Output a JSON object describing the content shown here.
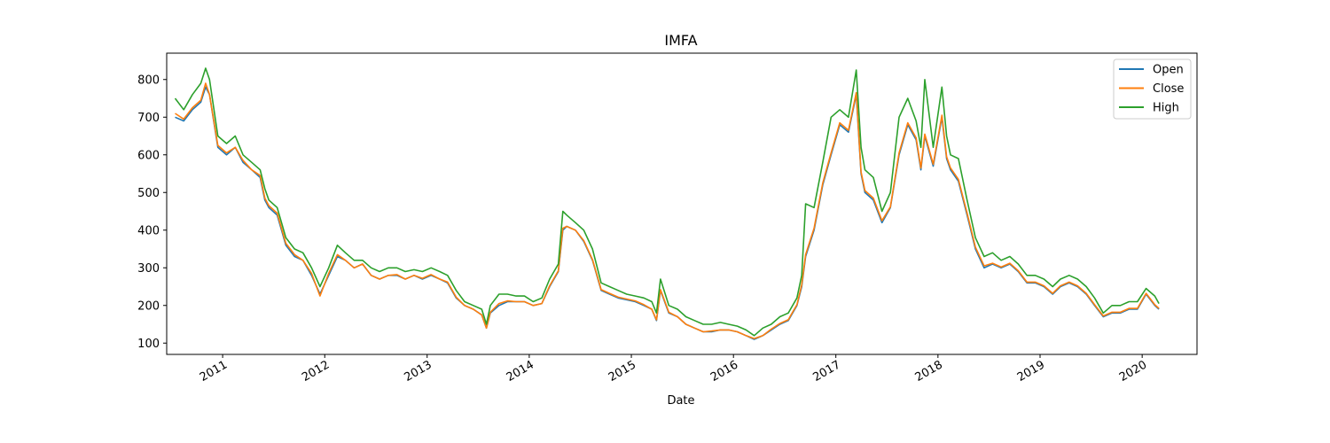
{
  "chart_data": {
    "type": "line",
    "title": "IMFA",
    "xlabel": "Date",
    "ylabel": "",
    "x_range": [
      "2010-06-15",
      "2020-07-15"
    ],
    "ylim": [
      70,
      870
    ],
    "yticks": [
      100,
      200,
      300,
      400,
      500,
      600,
      700,
      800
    ],
    "xticks": [
      "2011",
      "2012",
      "2013",
      "2014",
      "2015",
      "2016",
      "2017",
      "2018",
      "2019",
      "2020"
    ],
    "grid": false,
    "legend_position": "top-right",
    "x": [
      "2010-07-15",
      "2010-08-15",
      "2010-09-15",
      "2010-10-15",
      "2010-11-01",
      "2010-11-15",
      "2010-12-15",
      "2011-01-15",
      "2011-02-15",
      "2011-03-15",
      "2011-04-15",
      "2011-05-15",
      "2011-06-01",
      "2011-06-15",
      "2011-07-15",
      "2011-08-15",
      "2011-09-15",
      "2011-10-15",
      "2011-11-15",
      "2011-12-15",
      "2012-01-15",
      "2012-02-15",
      "2012-03-15",
      "2012-04-15",
      "2012-05-15",
      "2012-06-15",
      "2012-07-15",
      "2012-08-15",
      "2012-09-15",
      "2012-10-15",
      "2012-11-15",
      "2012-12-15",
      "2013-01-15",
      "2013-02-15",
      "2013-03-15",
      "2013-04-15",
      "2013-05-15",
      "2013-06-15",
      "2013-07-15",
      "2013-08-01",
      "2013-08-15",
      "2013-09-15",
      "2013-10-15",
      "2013-11-15",
      "2013-12-15",
      "2014-01-15",
      "2014-02-15",
      "2014-03-15",
      "2014-04-15",
      "2014-05-01",
      "2014-05-15",
      "2014-06-15",
      "2014-07-15",
      "2014-08-15",
      "2014-09-15",
      "2014-10-15",
      "2014-11-15",
      "2014-12-15",
      "2015-01-15",
      "2015-02-15",
      "2015-03-15",
      "2015-04-01",
      "2015-04-15",
      "2015-05-15",
      "2015-06-15",
      "2015-07-15",
      "2015-08-15",
      "2015-09-15",
      "2015-10-15",
      "2015-11-15",
      "2015-12-15",
      "2016-01-15",
      "2016-02-15",
      "2016-03-15",
      "2016-04-15",
      "2016-05-15",
      "2016-06-15",
      "2016-07-15",
      "2016-08-15",
      "2016-09-01",
      "2016-09-15",
      "2016-10-15",
      "2016-11-15",
      "2016-12-15",
      "2017-01-15",
      "2017-02-15",
      "2017-03-15",
      "2017-04-01",
      "2017-04-15",
      "2017-05-15",
      "2017-06-15",
      "2017-07-15",
      "2017-08-15",
      "2017-09-15",
      "2017-10-15",
      "2017-11-01",
      "2017-11-15",
      "2017-12-15",
      "2018-01-15",
      "2018-02-01",
      "2018-02-15",
      "2018-03-15",
      "2018-04-15",
      "2018-05-15",
      "2018-06-15",
      "2018-07-15",
      "2018-08-15",
      "2018-09-15",
      "2018-10-15",
      "2018-11-15",
      "2018-12-15",
      "2019-01-15",
      "2019-02-15",
      "2019-03-15",
      "2019-04-15",
      "2019-05-15",
      "2019-06-15",
      "2019-07-15",
      "2019-08-15",
      "2019-09-15",
      "2019-10-15",
      "2019-11-15",
      "2019-12-15",
      "2020-01-15",
      "2020-02-15",
      "2020-03-01"
    ],
    "series": [
      {
        "name": "Open",
        "color": "#1f77b4",
        "values": [
          700,
          690,
          720,
          740,
          780,
          760,
          620,
          600,
          620,
          580,
          560,
          540,
          480,
          460,
          440,
          360,
          330,
          320,
          280,
          230,
          280,
          330,
          320,
          300,
          310,
          280,
          270,
          280,
          280,
          270,
          280,
          270,
          280,
          270,
          260,
          220,
          200,
          190,
          175,
          140,
          180,
          200,
          210,
          210,
          210,
          200,
          205,
          250,
          290,
          400,
          410,
          400,
          370,
          320,
          240,
          230,
          220,
          215,
          210,
          200,
          190,
          160,
          240,
          180,
          170,
          150,
          140,
          130,
          130,
          135,
          135,
          130,
          120,
          110,
          120,
          135,
          150,
          160,
          200,
          250,
          330,
          400,
          520,
          600,
          680,
          660,
          760,
          550,
          500,
          480,
          420,
          460,
          600,
          680,
          640,
          560,
          650,
          570,
          700,
          590,
          560,
          530,
          440,
          350,
          300,
          310,
          300,
          310,
          290,
          260,
          260,
          250,
          230,
          250,
          260,
          250,
          230,
          200,
          170,
          180,
          180,
          190,
          190,
          230,
          200,
          190
        ]
      },
      {
        "name": "Close",
        "color": "#ff7f0e",
        "values": [
          710,
          695,
          725,
          745,
          790,
          760,
          625,
          605,
          620,
          585,
          560,
          545,
          485,
          465,
          445,
          365,
          335,
          320,
          285,
          225,
          285,
          335,
          320,
          300,
          310,
          280,
          270,
          280,
          282,
          270,
          280,
          272,
          282,
          270,
          262,
          222,
          200,
          190,
          175,
          140,
          182,
          205,
          212,
          210,
          210,
          200,
          205,
          252,
          292,
          405,
          410,
          400,
          372,
          322,
          242,
          232,
          222,
          217,
          212,
          202,
          190,
          162,
          242,
          182,
          170,
          150,
          140,
          130,
          132,
          135,
          135,
          130,
          120,
          112,
          120,
          137,
          152,
          162,
          202,
          255,
          335,
          405,
          525,
          605,
          685,
          665,
          765,
          555,
          505,
          485,
          425,
          462,
          605,
          685,
          645,
          565,
          655,
          575,
          705,
          595,
          565,
          535,
          445,
          355,
          305,
          312,
          302,
          312,
          292,
          262,
          262,
          252,
          232,
          252,
          262,
          252,
          232,
          202,
          172,
          182,
          182,
          192,
          192,
          232,
          202,
          192
        ]
      },
      {
        "name": "High",
        "color": "#2ca02c",
        "values": [
          750,
          720,
          760,
          790,
          830,
          800,
          650,
          630,
          650,
          600,
          580,
          560,
          510,
          480,
          460,
          380,
          350,
          340,
          300,
          250,
          300,
          360,
          340,
          320,
          320,
          300,
          290,
          300,
          300,
          290,
          295,
          290,
          300,
          290,
          280,
          240,
          210,
          200,
          190,
          150,
          200,
          230,
          230,
          225,
          225,
          210,
          220,
          270,
          310,
          450,
          440,
          420,
          400,
          350,
          260,
          250,
          240,
          230,
          225,
          220,
          210,
          180,
          270,
          200,
          190,
          170,
          160,
          150,
          150,
          155,
          150,
          145,
          135,
          120,
          140,
          150,
          170,
          180,
          220,
          280,
          470,
          460,
          580,
          700,
          720,
          700,
          825,
          620,
          560,
          540,
          450,
          500,
          700,
          750,
          690,
          620,
          800,
          620,
          780,
          650,
          600,
          590,
          480,
          380,
          330,
          340,
          320,
          330,
          310,
          280,
          280,
          270,
          250,
          270,
          280,
          270,
          250,
          220,
          180,
          200,
          200,
          210,
          210,
          245,
          225,
          205
        ]
      }
    ]
  }
}
